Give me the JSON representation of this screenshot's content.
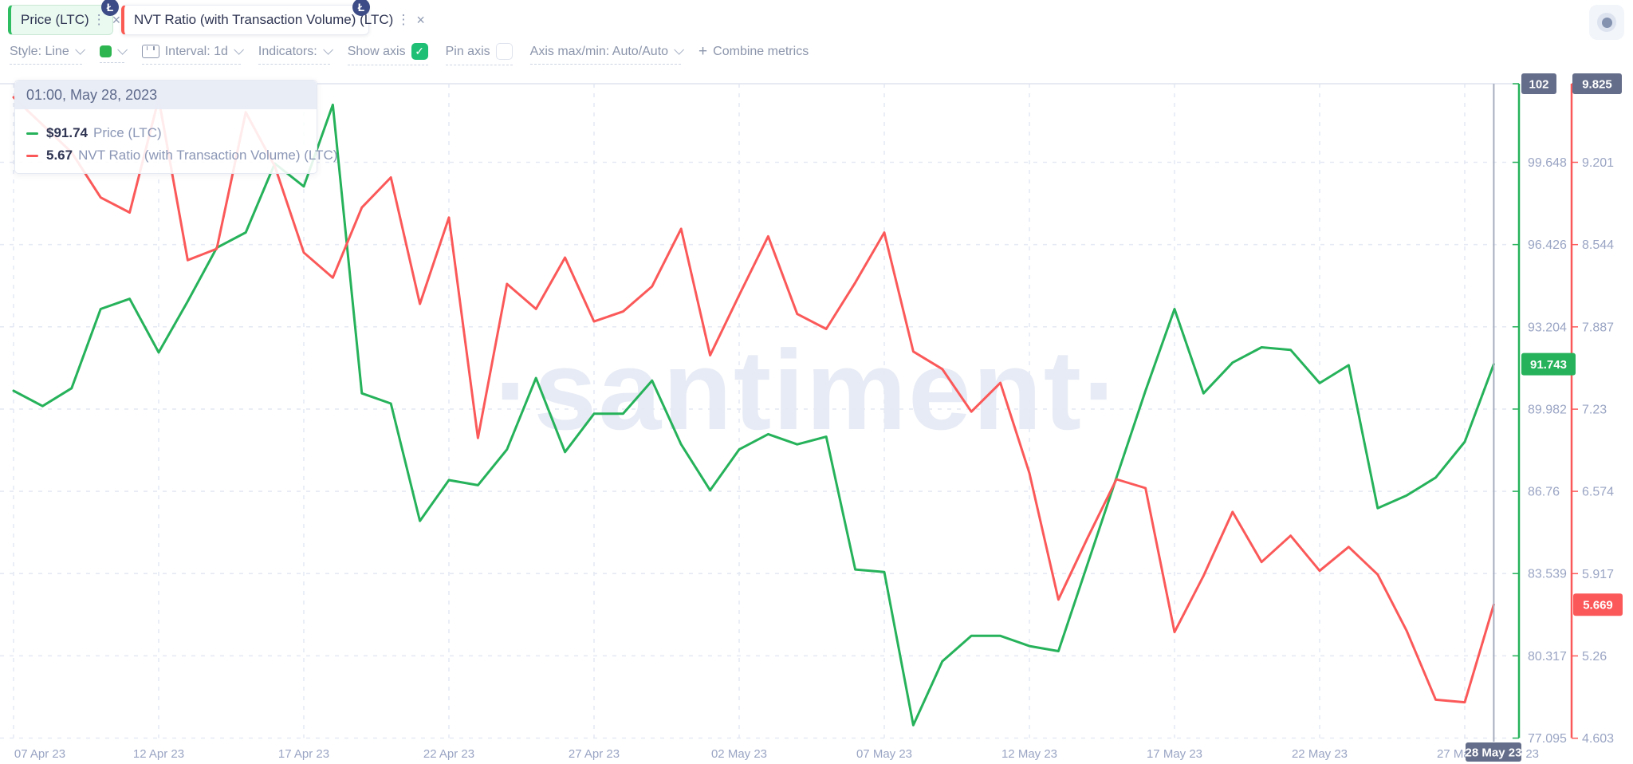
{
  "tabs": [
    {
      "label": "Price (LTC)",
      "accent": "#2fbd62",
      "background": "#eafaf0",
      "coin_glyph": "Ł"
    },
    {
      "label": "NVT Ratio (with Transaction Volume) (LTC)",
      "accent": "#fa5a52",
      "background": "#ffffff",
      "coin_glyph": "Ł"
    }
  ],
  "icons": {
    "kebab": "⋮",
    "close": "×",
    "check": "✓",
    "plus": "+",
    "coin": "Ł"
  },
  "toolbar": {
    "style_label": "Style: Line",
    "swatch_color": "#2db550",
    "interval_label": "Interval: 1d",
    "indicators_label": "Indicators:",
    "show_axis_label": "Show axis",
    "show_axis_checked": true,
    "pin_axis_label": "Pin axis",
    "pin_axis_checked": false,
    "axis_maxmin_label": "Axis max/min: Auto/Auto",
    "combine_label": "Combine metrics"
  },
  "tooltip": {
    "time": "01:00, May 28, 2023",
    "rows": [
      {
        "value": "$91.74",
        "label": "Price (LTC)",
        "color": "#26b25a"
      },
      {
        "value": "5.67",
        "label": "NVT Ratio (with Transaction Volume) (LTC)",
        "color": "#fb5959"
      }
    ]
  },
  "watermark": "·santiment·",
  "chart_data": {
    "type": "line",
    "interval": "1d",
    "points": 52,
    "start_label": "07 Apr 23",
    "end_label": "28 May 23",
    "grid": true,
    "x_tick_labels": [
      "07 Apr 23",
      "12 Apr 23",
      "17 Apr 23",
      "22 Apr 23",
      "27 Apr 23",
      "02 May 23",
      "07 May 23",
      "12 May 23",
      "17 May 23",
      "22 May 23",
      "27 May 23"
    ],
    "hover": {
      "x_label": "28 May 23",
      "index": 51,
      "time": "01:00, May 28, 2023",
      "price": 91.743,
      "nvt": 5.669
    },
    "series": [
      {
        "name": "Price (LTC)",
        "axis": "left",
        "color": "#26b25a",
        "values": [
          90.7,
          90.1,
          90.8,
          93.9,
          94.3,
          92.2,
          94.2,
          96.3,
          96.9,
          99.6,
          98.7,
          101.9,
          90.6,
          90.2,
          85.6,
          87.2,
          87.0,
          88.4,
          91.2,
          88.3,
          89.8,
          89.8,
          91.1,
          88.6,
          86.8,
          88.4,
          89.0,
          88.6,
          88.9,
          83.7,
          83.6,
          77.6,
          80.1,
          81.1,
          81.1,
          80.7,
          80.5,
          83.9,
          87.3,
          90.7,
          93.9,
          90.6,
          91.8,
          92.4,
          92.3,
          91.0,
          91.7,
          86.1,
          86.6,
          87.3,
          88.7,
          91.74
        ]
      },
      {
        "name": "NVT Ratio (with Transaction Volume) (LTC)",
        "axis": "right",
        "color": "#fb5959",
        "values": [
          9.72,
          9.5,
          9.28,
          8.92,
          8.8,
          9.71,
          8.42,
          8.51,
          9.6,
          9.17,
          8.48,
          8.28,
          8.84,
          9.08,
          8.07,
          8.76,
          7.0,
          8.23,
          8.03,
          8.44,
          7.93,
          8.01,
          8.21,
          8.67,
          7.66,
          8.14,
          8.61,
          7.99,
          7.87,
          8.24,
          8.64,
          7.69,
          7.55,
          7.21,
          7.44,
          6.72,
          5.71,
          6.2,
          6.67,
          6.6,
          5.45,
          5.9,
          6.41,
          6.01,
          6.22,
          5.94,
          6.13,
          5.91,
          5.46,
          4.91,
          4.89,
          5.669
        ]
      }
    ],
    "y_left": {
      "color": "#26b25a",
      "max_badge": "102",
      "current_badge": "91.743",
      "current_value": 91.743,
      "tick_labels": [
        "99.648",
        "96.426",
        "93.204",
        "89.982",
        "86.76",
        "83.539",
        "80.317",
        "77.095"
      ]
    },
    "y_right": {
      "color": "#fb5959",
      "max_badge": "9.825",
      "current_badge": "5.669",
      "current_value": 5.669,
      "tick_labels": [
        "9.201",
        "8.544",
        "7.887",
        "7.23",
        "6.574",
        "5.917",
        "5.26",
        "4.603"
      ]
    },
    "title": "",
    "xlabel": "",
    "ylabel_left": "Price (LTC)",
    "ylabel_right": "NVT Ratio (with Transaction Volume) (LTC)"
  },
  "colors": {
    "grid": "#e5e9f3",
    "axis_text": "#9aa5c4",
    "dark_badge": "#646d89",
    "crosshair": "#a8aec0",
    "plot_border": "#e0e4ef"
  }
}
